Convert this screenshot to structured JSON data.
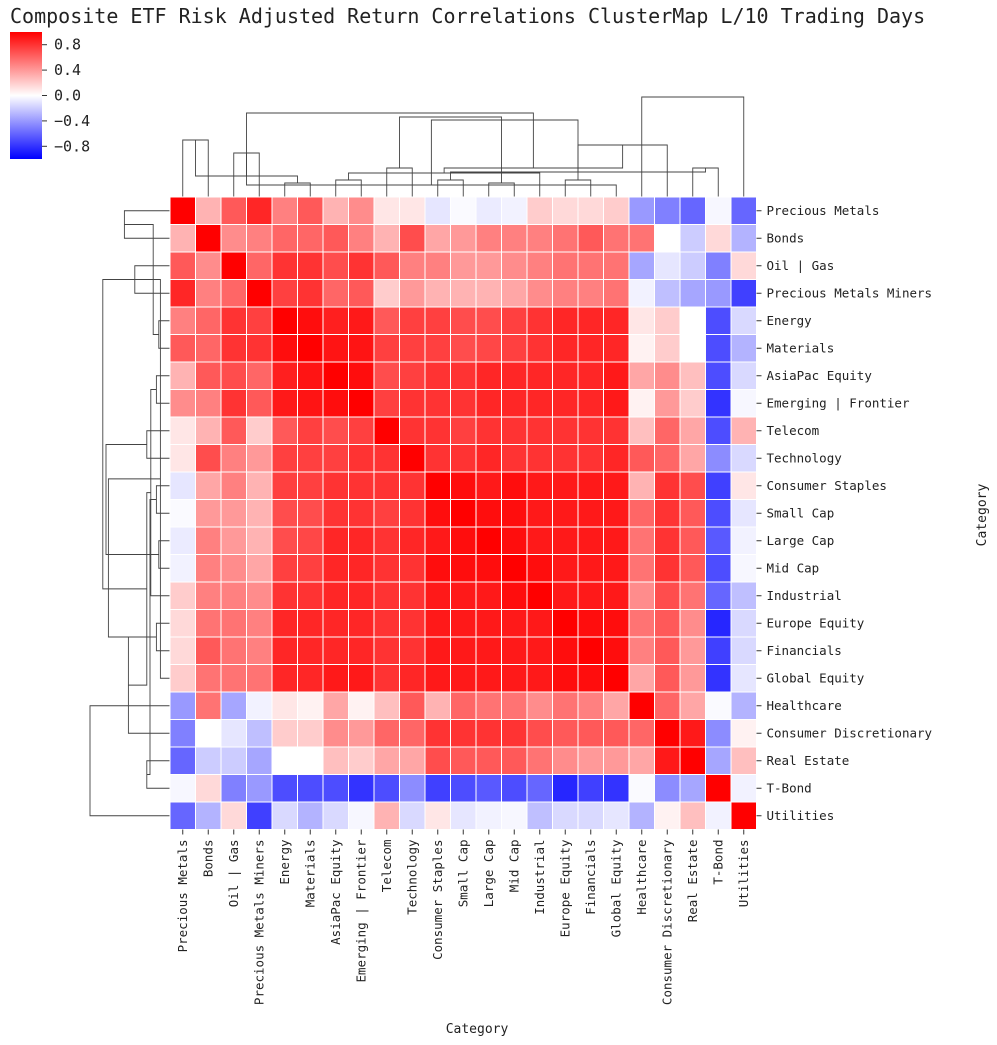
{
  "chart_data": {
    "type": "heatmap",
    "title": "Composite ETF Risk Adjusted Return Correlations ClusterMap L/10 Trading Days",
    "xlabel": "Category",
    "ylabel": "Category",
    "colormap": "bwr",
    "vmin": -1,
    "vmax": 1,
    "colorbar_ticks": [
      "0.8",
      "0.4",
      "0.0",
      "−0.4",
      "−0.8"
    ],
    "colorbar_tick_values": [
      0.8,
      0.4,
      0.0,
      -0.4,
      -0.8
    ],
    "categories": [
      "Precious Metals",
      "Bonds",
      "Oil | Gas",
      "Precious Metals Miners",
      "Energy",
      "Materials",
      "AsiaPac Equity",
      "Emerging | Frontier",
      "Telecom",
      "Technology",
      "Consumer Staples",
      "Small Cap",
      "Large Cap",
      "Mid Cap",
      "Industrial",
      "Europe Equity",
      "Financials",
      "Global Equity",
      "Healthcare",
      "Consumer Discretionary",
      "Real Estate",
      "T-Bond",
      "Utilities"
    ],
    "values": [
      [
        1.0,
        0.3,
        0.65,
        0.85,
        0.5,
        0.65,
        0.3,
        0.45,
        0.1,
        0.1,
        -0.1,
        -0.02,
        -0.08,
        -0.05,
        0.2,
        0.15,
        0.15,
        0.2,
        -0.4,
        -0.5,
        -0.6,
        -0.03,
        -0.6
      ],
      [
        0.3,
        1.0,
        0.45,
        0.5,
        0.6,
        0.6,
        0.65,
        0.5,
        0.3,
        0.7,
        0.35,
        0.4,
        0.5,
        0.5,
        0.5,
        0.55,
        0.65,
        0.55,
        0.55,
        0.0,
        -0.2,
        0.15,
        -0.3
      ],
      [
        0.65,
        0.45,
        1.0,
        0.6,
        0.8,
        0.8,
        0.7,
        0.8,
        0.65,
        0.5,
        0.5,
        0.4,
        0.4,
        0.45,
        0.5,
        0.55,
        0.55,
        0.55,
        -0.35,
        -0.1,
        -0.2,
        -0.5,
        0.15
      ],
      [
        0.85,
        0.5,
        0.6,
        1.0,
        0.75,
        0.8,
        0.6,
        0.65,
        0.2,
        0.4,
        0.3,
        0.3,
        0.3,
        0.35,
        0.45,
        0.5,
        0.5,
        0.55,
        -0.05,
        -0.25,
        -0.35,
        -0.4,
        -0.75
      ],
      [
        0.5,
        0.6,
        0.8,
        0.75,
        1.0,
        0.95,
        0.88,
        0.9,
        0.65,
        0.75,
        0.75,
        0.7,
        0.7,
        0.75,
        0.8,
        0.85,
        0.85,
        0.85,
        0.1,
        0.2,
        0.0,
        -0.7,
        -0.15
      ],
      [
        0.65,
        0.6,
        0.8,
        0.8,
        0.95,
        1.0,
        0.92,
        0.92,
        0.75,
        0.75,
        0.75,
        0.7,
        0.72,
        0.75,
        0.8,
        0.85,
        0.85,
        0.85,
        0.05,
        0.2,
        0.0,
        -0.7,
        -0.3
      ],
      [
        0.3,
        0.65,
        0.7,
        0.6,
        0.88,
        0.92,
        1.0,
        0.95,
        0.7,
        0.75,
        0.8,
        0.8,
        0.85,
        0.85,
        0.85,
        0.85,
        0.85,
        0.9,
        0.35,
        0.45,
        0.25,
        -0.7,
        -0.15
      ],
      [
        0.45,
        0.5,
        0.8,
        0.65,
        0.9,
        0.92,
        0.95,
        1.0,
        0.75,
        0.8,
        0.8,
        0.8,
        0.85,
        0.85,
        0.85,
        0.85,
        0.85,
        0.9,
        0.05,
        0.4,
        0.2,
        -0.8,
        -0.03
      ],
      [
        0.1,
        0.3,
        0.65,
        0.2,
        0.65,
        0.75,
        0.7,
        0.75,
        1.0,
        0.8,
        0.8,
        0.75,
        0.8,
        0.8,
        0.8,
        0.8,
        0.8,
        0.8,
        0.25,
        0.6,
        0.35,
        -0.7,
        0.3
      ],
      [
        0.1,
        0.7,
        0.5,
        0.4,
        0.75,
        0.75,
        0.75,
        0.8,
        0.8,
        1.0,
        0.8,
        0.8,
        0.85,
        0.8,
        0.8,
        0.8,
        0.8,
        0.85,
        0.65,
        0.6,
        0.35,
        -0.45,
        -0.15
      ],
      [
        -0.1,
        0.35,
        0.5,
        0.3,
        0.75,
        0.75,
        0.8,
        0.8,
        0.8,
        0.8,
        1.0,
        0.95,
        0.9,
        0.95,
        0.9,
        0.9,
        0.9,
        0.9,
        0.3,
        0.8,
        0.7,
        -0.75,
        0.1
      ],
      [
        -0.02,
        0.4,
        0.4,
        0.3,
        0.7,
        0.7,
        0.8,
        0.8,
        0.75,
        0.8,
        0.95,
        1.0,
        0.95,
        0.95,
        0.9,
        0.9,
        0.9,
        0.9,
        0.6,
        0.8,
        0.65,
        -0.7,
        -0.1
      ],
      [
        -0.08,
        0.5,
        0.4,
        0.3,
        0.7,
        0.72,
        0.85,
        0.85,
        0.8,
        0.85,
        0.9,
        0.95,
        1.0,
        0.95,
        0.9,
        0.9,
        0.9,
        0.9,
        0.55,
        0.8,
        0.65,
        -0.65,
        -0.05
      ],
      [
        -0.05,
        0.5,
        0.45,
        0.35,
        0.75,
        0.75,
        0.85,
        0.85,
        0.8,
        0.8,
        0.95,
        0.95,
        0.95,
        1.0,
        0.95,
        0.9,
        0.9,
        0.9,
        0.55,
        0.8,
        0.65,
        -0.7,
        -0.03
      ],
      [
        0.2,
        0.5,
        0.5,
        0.45,
        0.8,
        0.8,
        0.85,
        0.85,
        0.8,
        0.8,
        0.9,
        0.9,
        0.9,
        0.95,
        1.0,
        0.9,
        0.9,
        0.9,
        0.45,
        0.7,
        0.55,
        -0.6,
        -0.25
      ],
      [
        0.15,
        0.55,
        0.55,
        0.5,
        0.85,
        0.85,
        0.85,
        0.85,
        0.8,
        0.8,
        0.9,
        0.9,
        0.9,
        0.9,
        0.9,
        1.0,
        0.95,
        0.95,
        0.55,
        0.65,
        0.45,
        -0.85,
        -0.15
      ],
      [
        0.15,
        0.65,
        0.55,
        0.5,
        0.85,
        0.85,
        0.85,
        0.85,
        0.8,
        0.8,
        0.9,
        0.9,
        0.9,
        0.9,
        0.9,
        0.95,
        1.0,
        0.95,
        0.5,
        0.65,
        0.4,
        -0.75,
        -0.15
      ],
      [
        0.2,
        0.55,
        0.55,
        0.55,
        0.85,
        0.85,
        0.9,
        0.9,
        0.8,
        0.85,
        0.9,
        0.9,
        0.9,
        0.9,
        0.9,
        0.95,
        0.95,
        1.0,
        0.35,
        0.65,
        0.4,
        -0.8,
        -0.1
      ],
      [
        -0.4,
        0.55,
        -0.35,
        -0.05,
        0.1,
        0.05,
        0.35,
        0.05,
        0.25,
        0.65,
        0.3,
        0.6,
        0.55,
        0.55,
        0.45,
        0.55,
        0.5,
        0.35,
        1.0,
        0.6,
        0.35,
        -0.02,
        -0.3
      ],
      [
        -0.5,
        0.0,
        -0.1,
        -0.25,
        0.2,
        0.2,
        0.45,
        0.4,
        0.6,
        0.6,
        0.8,
        0.8,
        0.8,
        0.8,
        0.7,
        0.65,
        0.65,
        0.65,
        0.6,
        1.0,
        0.9,
        -0.45,
        0.05
      ],
      [
        -0.6,
        -0.2,
        -0.2,
        -0.35,
        0.0,
        0.0,
        0.25,
        0.2,
        0.35,
        0.35,
        0.7,
        0.65,
        0.65,
        0.65,
        0.55,
        0.45,
        0.4,
        0.4,
        0.35,
        0.9,
        1.0,
        -0.35,
        0.25
      ],
      [
        -0.03,
        0.15,
        -0.5,
        -0.4,
        -0.7,
        -0.7,
        -0.7,
        -0.8,
        -0.7,
        -0.45,
        -0.75,
        -0.7,
        -0.65,
        -0.7,
        -0.6,
        -0.85,
        -0.75,
        -0.8,
        -0.02,
        -0.45,
        -0.35,
        1.0,
        -0.05
      ],
      [
        -0.6,
        -0.3,
        0.15,
        -0.75,
        -0.15,
        -0.3,
        -0.15,
        -0.03,
        0.3,
        -0.15,
        0.1,
        -0.1,
        -0.05,
        -0.03,
        -0.25,
        -0.15,
        -0.15,
        -0.1,
        -0.3,
        0.05,
        0.25,
        -0.05,
        1.0
      ]
    ]
  }
}
